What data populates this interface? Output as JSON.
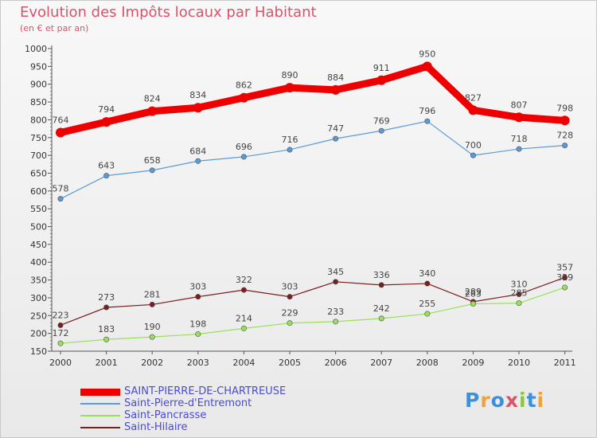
{
  "title": "Evolution des Impôts locaux par Habitant",
  "subtitle": "(en € et par an)",
  "brand": "Proxiti",
  "chart_data": {
    "type": "line",
    "title": "Evolution des Impôts locaux par Habitant",
    "subtitle": "(en € et par an)",
    "x": [
      "2000",
      "2001",
      "2002",
      "2003",
      "2004",
      "2005",
      "2006",
      "2007",
      "2008",
      "2009",
      "2010",
      "2011"
    ],
    "ylim": [
      150,
      1000
    ],
    "yticks": [
      150,
      200,
      250,
      300,
      350,
      400,
      450,
      500,
      550,
      600,
      650,
      700,
      750,
      800,
      850,
      900,
      950,
      1000
    ],
    "grid": false,
    "legend_position": "bottom-left",
    "series": [
      {
        "name": "SAINT-PIERRE-DE-CHARTREUSE",
        "color": "#ee0000",
        "values": [
          764,
          794,
          824,
          834,
          862,
          890,
          884,
          911,
          950,
          827,
          807,
          798
        ]
      },
      {
        "name": "Saint-Pierre-d'Entremont",
        "color": "#5b9bd5",
        "values": [
          578,
          643,
          658,
          684,
          696,
          716,
          747,
          769,
          796,
          700,
          718,
          728
        ]
      },
      {
        "name": "Saint-Pancrasse",
        "color": "#99e05a",
        "values": [
          172,
          183,
          190,
          198,
          214,
          229,
          233,
          242,
          255,
          283,
          285,
          329
        ]
      },
      {
        "name": "Saint-Hilaire",
        "color": "#7a1e1e",
        "values": [
          223,
          273,
          281,
          303,
          322,
          303,
          345,
          336,
          340,
          289,
          310,
          357
        ]
      }
    ],
    "data_labels": [
      [
        "764",
        "794",
        "824",
        "834",
        "862",
        "890",
        "884",
        "911",
        "950",
        "827",
        "807",
        "798"
      ],
      [
        "578",
        "643",
        "658",
        "684",
        "696",
        "716",
        "747",
        "769",
        "796",
        "700",
        "718",
        "728"
      ],
      [
        "172",
        "183",
        "190",
        "198",
        "214",
        "229",
        "233",
        "242",
        "255",
        "283",
        "285",
        "329"
      ],
      [
        "223",
        "273",
        "281",
        "303",
        "322",
        "303",
        "345",
        "336",
        "340",
        "289",
        "310",
        "357"
      ]
    ]
  }
}
